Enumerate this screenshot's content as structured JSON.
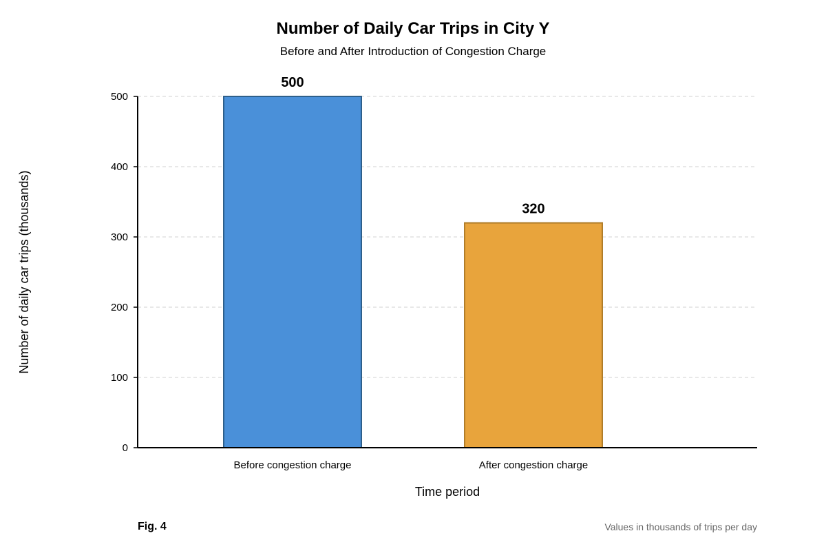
{
  "chart_data": {
    "type": "bar",
    "title": "Number of Daily Car Trips in City Y",
    "subtitle": "Before and After Introduction of Congestion Charge",
    "categories": [
      "Before congestion charge",
      "After congestion charge"
    ],
    "values": [
      500,
      320
    ],
    "value_labels": [
      "500",
      "320"
    ],
    "bar_colors": [
      "#4a90d9",
      "#e8a43c"
    ],
    "bar_border_colors": [
      "#2e5f8a",
      "#b07d2a"
    ],
    "xlabel": "Time period",
    "ylabel": "Number of daily car trips (thousands)",
    "ylim": [
      0,
      500
    ],
    "yticks": [
      0,
      100,
      200,
      300,
      400,
      500
    ],
    "grid": true,
    "legend": "none"
  },
  "figure": {
    "label": "Fig. 4",
    "note": "Values in thousands of trips per day"
  }
}
